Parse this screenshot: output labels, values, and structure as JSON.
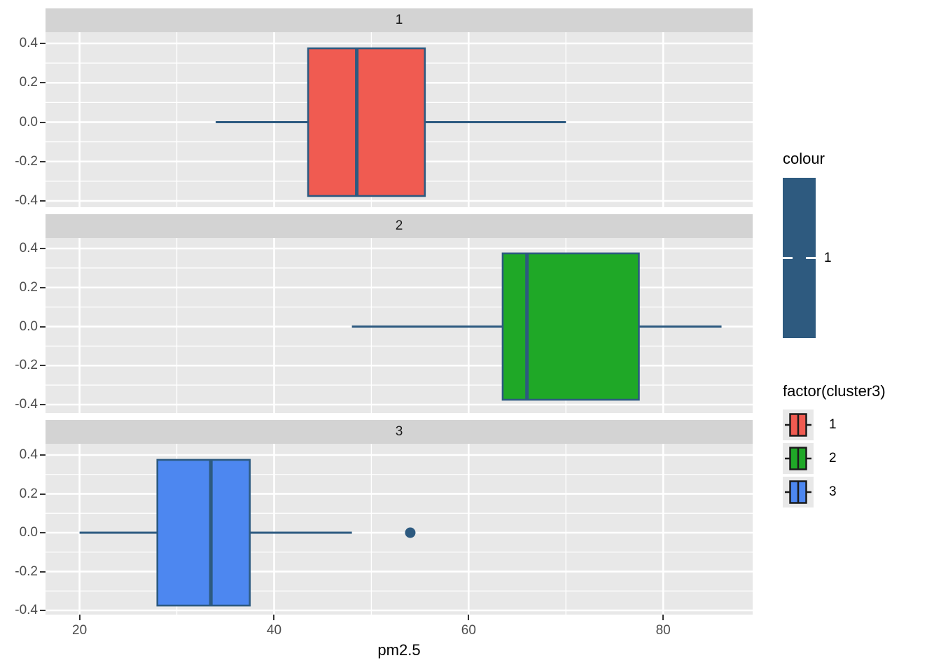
{
  "figure": {
    "background": "#FFFFFF",
    "panel_bg": "#E8E8E8",
    "strip_bg": "#D3D3D3",
    "grid_color": "#FFFFFF",
    "tick_color": "#333333",
    "tick_label_color": "#4D4D4D"
  },
  "chart_data": {
    "type": "boxplot",
    "orientation": "horizontal",
    "title": "",
    "xlabel": "pm2.5",
    "ylabel": "",
    "x_domain": [
      16.5,
      89.2
    ],
    "x_major_ticks": [
      20,
      40,
      60,
      80
    ],
    "x_minor_ticks": [
      30,
      50,
      70
    ],
    "y_major_ticks": [
      0.4,
      0.2,
      0.0,
      -0.2,
      -0.4
    ],
    "y_tick_labels": [
      "0.4",
      "0.2",
      "0.0",
      "-0.2",
      "-0.4"
    ],
    "y_minor_ticks": [
      0.3,
      0.1,
      -0.1,
      -0.3
    ],
    "box_half_width": 0.375,
    "box_border_color": "#2D5A80",
    "facets": [
      {
        "label": "1",
        "cluster": "1",
        "fill": "#F05B51",
        "whisker_low": 34,
        "q1": 43.5,
        "median": 48.5,
        "q3": 55.5,
        "whisker_high": 70,
        "outliers": []
      },
      {
        "label": "2",
        "cluster": "2",
        "fill": "#1FA827",
        "whisker_low": 48,
        "q1": 63.5,
        "median": 66,
        "q3": 77.5,
        "whisker_high": 86,
        "outliers": []
      },
      {
        "label": "3",
        "cluster": "3",
        "fill": "#4D87F0",
        "whisker_low": 20,
        "q1": 28,
        "median": 33.5,
        "q3": 37.5,
        "whisker_high": 48,
        "outliers": [
          54
        ]
      }
    ]
  },
  "legends": {
    "colour": {
      "title": "colour",
      "bar_color": "#2E5A7F",
      "tick_label": "1"
    },
    "factor": {
      "title": "factor(cluster3)",
      "items": [
        {
          "label": "1",
          "fill": "#F05B51"
        },
        {
          "label": "2",
          "fill": "#1FA827"
        },
        {
          "label": "3",
          "fill": "#4D87F0"
        }
      ]
    }
  }
}
